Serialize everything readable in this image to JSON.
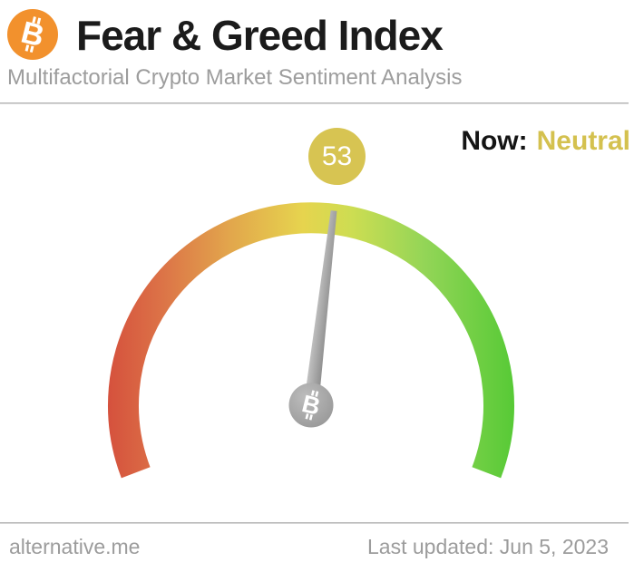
{
  "header": {
    "logo_icon": "bitcoin-icon",
    "logo_color": "#f2912d",
    "title": "Fear & Greed Index",
    "subtitle": "Multifactorial Crypto Market Sentiment Analysis"
  },
  "status": {
    "label": "Now:",
    "value": "Neutral",
    "value_color": "#d4c14f"
  },
  "chart_data": {
    "type": "gauge",
    "title": "Fear & Greed Index",
    "value": 53,
    "min": 0,
    "max": 100,
    "classification": "Neutral",
    "badge_color": "#d7c452",
    "needle_color": "#9b9b9b",
    "hub_icon": "bitcoin-icon",
    "arc_span_degrees": 222,
    "scale_note": "0 = Extreme Fear (red, left) to 100 = Extreme Greed (green, right)",
    "gradient": [
      {
        "offset": 0,
        "color": "#d5513d"
      },
      {
        "offset": 0.13,
        "color": "#dc7247"
      },
      {
        "offset": 0.3,
        "color": "#e2a64c"
      },
      {
        "offset": 0.48,
        "color": "#e6d44e"
      },
      {
        "offset": 0.6,
        "color": "#cddd52"
      },
      {
        "offset": 0.78,
        "color": "#93d557"
      },
      {
        "offset": 1,
        "color": "#57ca36"
      }
    ]
  },
  "footer": {
    "site": "alternative.me",
    "last_updated": "Last updated: Jun 5, 2023"
  }
}
